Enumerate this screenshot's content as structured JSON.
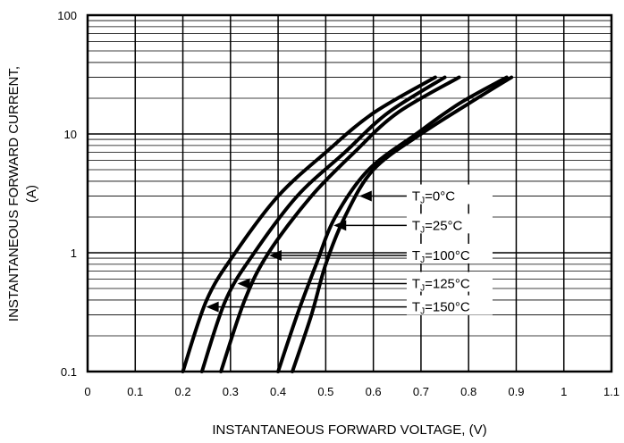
{
  "chart_data": {
    "type": "line",
    "title": "",
    "xlabel": "INSTANTANEOUS FORWARD VOLTAGE,  (V)",
    "ylabel_line1": "INSTANTANEOUS FORWARD CURRENT,",
    "ylabel_line2": "(A)",
    "xlim": [
      0,
      1.1
    ],
    "ylim": [
      0.1,
      100
    ],
    "y_scale": "log",
    "grid": true,
    "x_ticks": [
      {
        "value": 0,
        "label": "0"
      },
      {
        "value": 0.1,
        "label": "0.1"
      },
      {
        "value": 0.2,
        "label": "0.2"
      },
      {
        "value": 0.3,
        "label": "0.3"
      },
      {
        "value": 0.4,
        "label": "0.4"
      },
      {
        "value": 0.5,
        "label": "0.5"
      },
      {
        "value": 0.6,
        "label": "0.6"
      },
      {
        "value": 0.7,
        "label": "0.7"
      },
      {
        "value": 0.8,
        "label": "0.8"
      },
      {
        "value": 0.9,
        "label": "0.9"
      },
      {
        "value": 1.0,
        "label": "1"
      },
      {
        "value": 1.1,
        "label": "1.1"
      }
    ],
    "y_ticks": [
      {
        "value": 0.1,
        "label": "0.1"
      },
      {
        "value": 1,
        "label": "1"
      },
      {
        "value": 10,
        "label": "10"
      },
      {
        "value": 100,
        "label": "100"
      }
    ],
    "series": [
      {
        "name": "T",
        "sub": "J",
        "suffix": "=0°C",
        "points": [
          [
            0.43,
            0.1
          ],
          [
            0.47,
            0.3
          ],
          [
            0.5,
            0.8
          ],
          [
            0.54,
            2
          ],
          [
            0.6,
            5
          ],
          [
            0.7,
            10
          ],
          [
            0.8,
            18
          ],
          [
            0.89,
            30
          ]
        ]
      },
      {
        "name": "T",
        "sub": "J",
        "suffix": "=25°C",
        "points": [
          [
            0.4,
            0.1
          ],
          [
            0.44,
            0.3
          ],
          [
            0.48,
            0.8
          ],
          [
            0.52,
            2
          ],
          [
            0.59,
            5
          ],
          [
            0.69,
            10
          ],
          [
            0.78,
            18
          ],
          [
            0.88,
            30
          ]
        ]
      },
      {
        "name": "T",
        "sub": "J",
        "suffix": "=100°C",
        "points": [
          [
            0.28,
            0.1
          ],
          [
            0.33,
            0.4
          ],
          [
            0.38,
            1
          ],
          [
            0.47,
            3
          ],
          [
            0.56,
            7
          ],
          [
            0.65,
            15
          ],
          [
            0.78,
            30
          ]
        ]
      },
      {
        "name": "T",
        "sub": "J",
        "suffix": "=125°C",
        "points": [
          [
            0.24,
            0.1
          ],
          [
            0.29,
            0.4
          ],
          [
            0.35,
            1
          ],
          [
            0.44,
            3
          ],
          [
            0.54,
            7
          ],
          [
            0.63,
            15
          ],
          [
            0.75,
            30
          ]
        ]
      },
      {
        "name": "T",
        "sub": "J",
        "suffix": "=150°C",
        "points": [
          [
            0.2,
            0.1
          ],
          [
            0.25,
            0.4
          ],
          [
            0.31,
            1
          ],
          [
            0.4,
            3
          ],
          [
            0.5,
            7
          ],
          [
            0.6,
            15
          ],
          [
            0.73,
            30
          ]
        ]
      }
    ]
  }
}
